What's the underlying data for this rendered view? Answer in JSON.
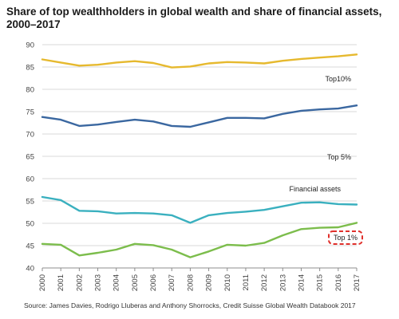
{
  "title": "Share of top wealthholders in global wealth and share of financial assets, 2000–2017",
  "source": "Source: James Davies, Rodrigo Lluberas and Anthony Shorrocks, Credit Suisse Global Wealth Databook 2017",
  "chart_data": {
    "type": "line",
    "title": "Share of top wealthholders in global wealth and share of financial assets, 2000–2017",
    "xlabel": "",
    "ylabel": "",
    "x": [
      "2000",
      "2001",
      "2002",
      "2003",
      "2004",
      "2005",
      "2006",
      "2007",
      "2008",
      "2009",
      "2010",
      "2011",
      "2012",
      "2013",
      "2014",
      "2015",
      "2016",
      "2017"
    ],
    "ylim": [
      40,
      90
    ],
    "yticks": [
      40,
      45,
      50,
      55,
      60,
      65,
      70,
      75,
      80,
      85,
      90
    ],
    "grid": "horizontal",
    "series": [
      {
        "name": "Top10%",
        "color": "#e6b92e",
        "values": [
          86.7,
          86.0,
          85.3,
          85.5,
          86.0,
          86.3,
          85.9,
          84.9,
          85.1,
          85.8,
          86.1,
          86.0,
          85.8,
          86.4,
          86.8,
          87.1,
          87.4,
          87.8
        ]
      },
      {
        "name": "Top 5%",
        "color": "#3a67a0",
        "values": [
          73.8,
          73.2,
          71.8,
          72.1,
          72.7,
          73.2,
          72.8,
          71.8,
          71.6,
          72.6,
          73.6,
          73.6,
          73.5,
          74.5,
          75.2,
          75.5,
          75.7,
          76.4
        ]
      },
      {
        "name": "Financial assets",
        "color": "#3ab0bf",
        "values": [
          55.9,
          55.2,
          52.8,
          52.7,
          52.2,
          52.3,
          52.2,
          51.8,
          50.1,
          51.8,
          52.3,
          52.6,
          53.0,
          53.8,
          54.6,
          54.7,
          54.3,
          54.2
        ]
      },
      {
        "name": "Top 1%",
        "color": "#7cbd4c",
        "values": [
          45.4,
          45.2,
          42.8,
          43.4,
          44.1,
          45.4,
          45.1,
          44.1,
          42.4,
          43.7,
          45.2,
          45.0,
          45.6,
          47.3,
          48.7,
          49.0,
          49.1,
          50.1
        ]
      }
    ]
  }
}
